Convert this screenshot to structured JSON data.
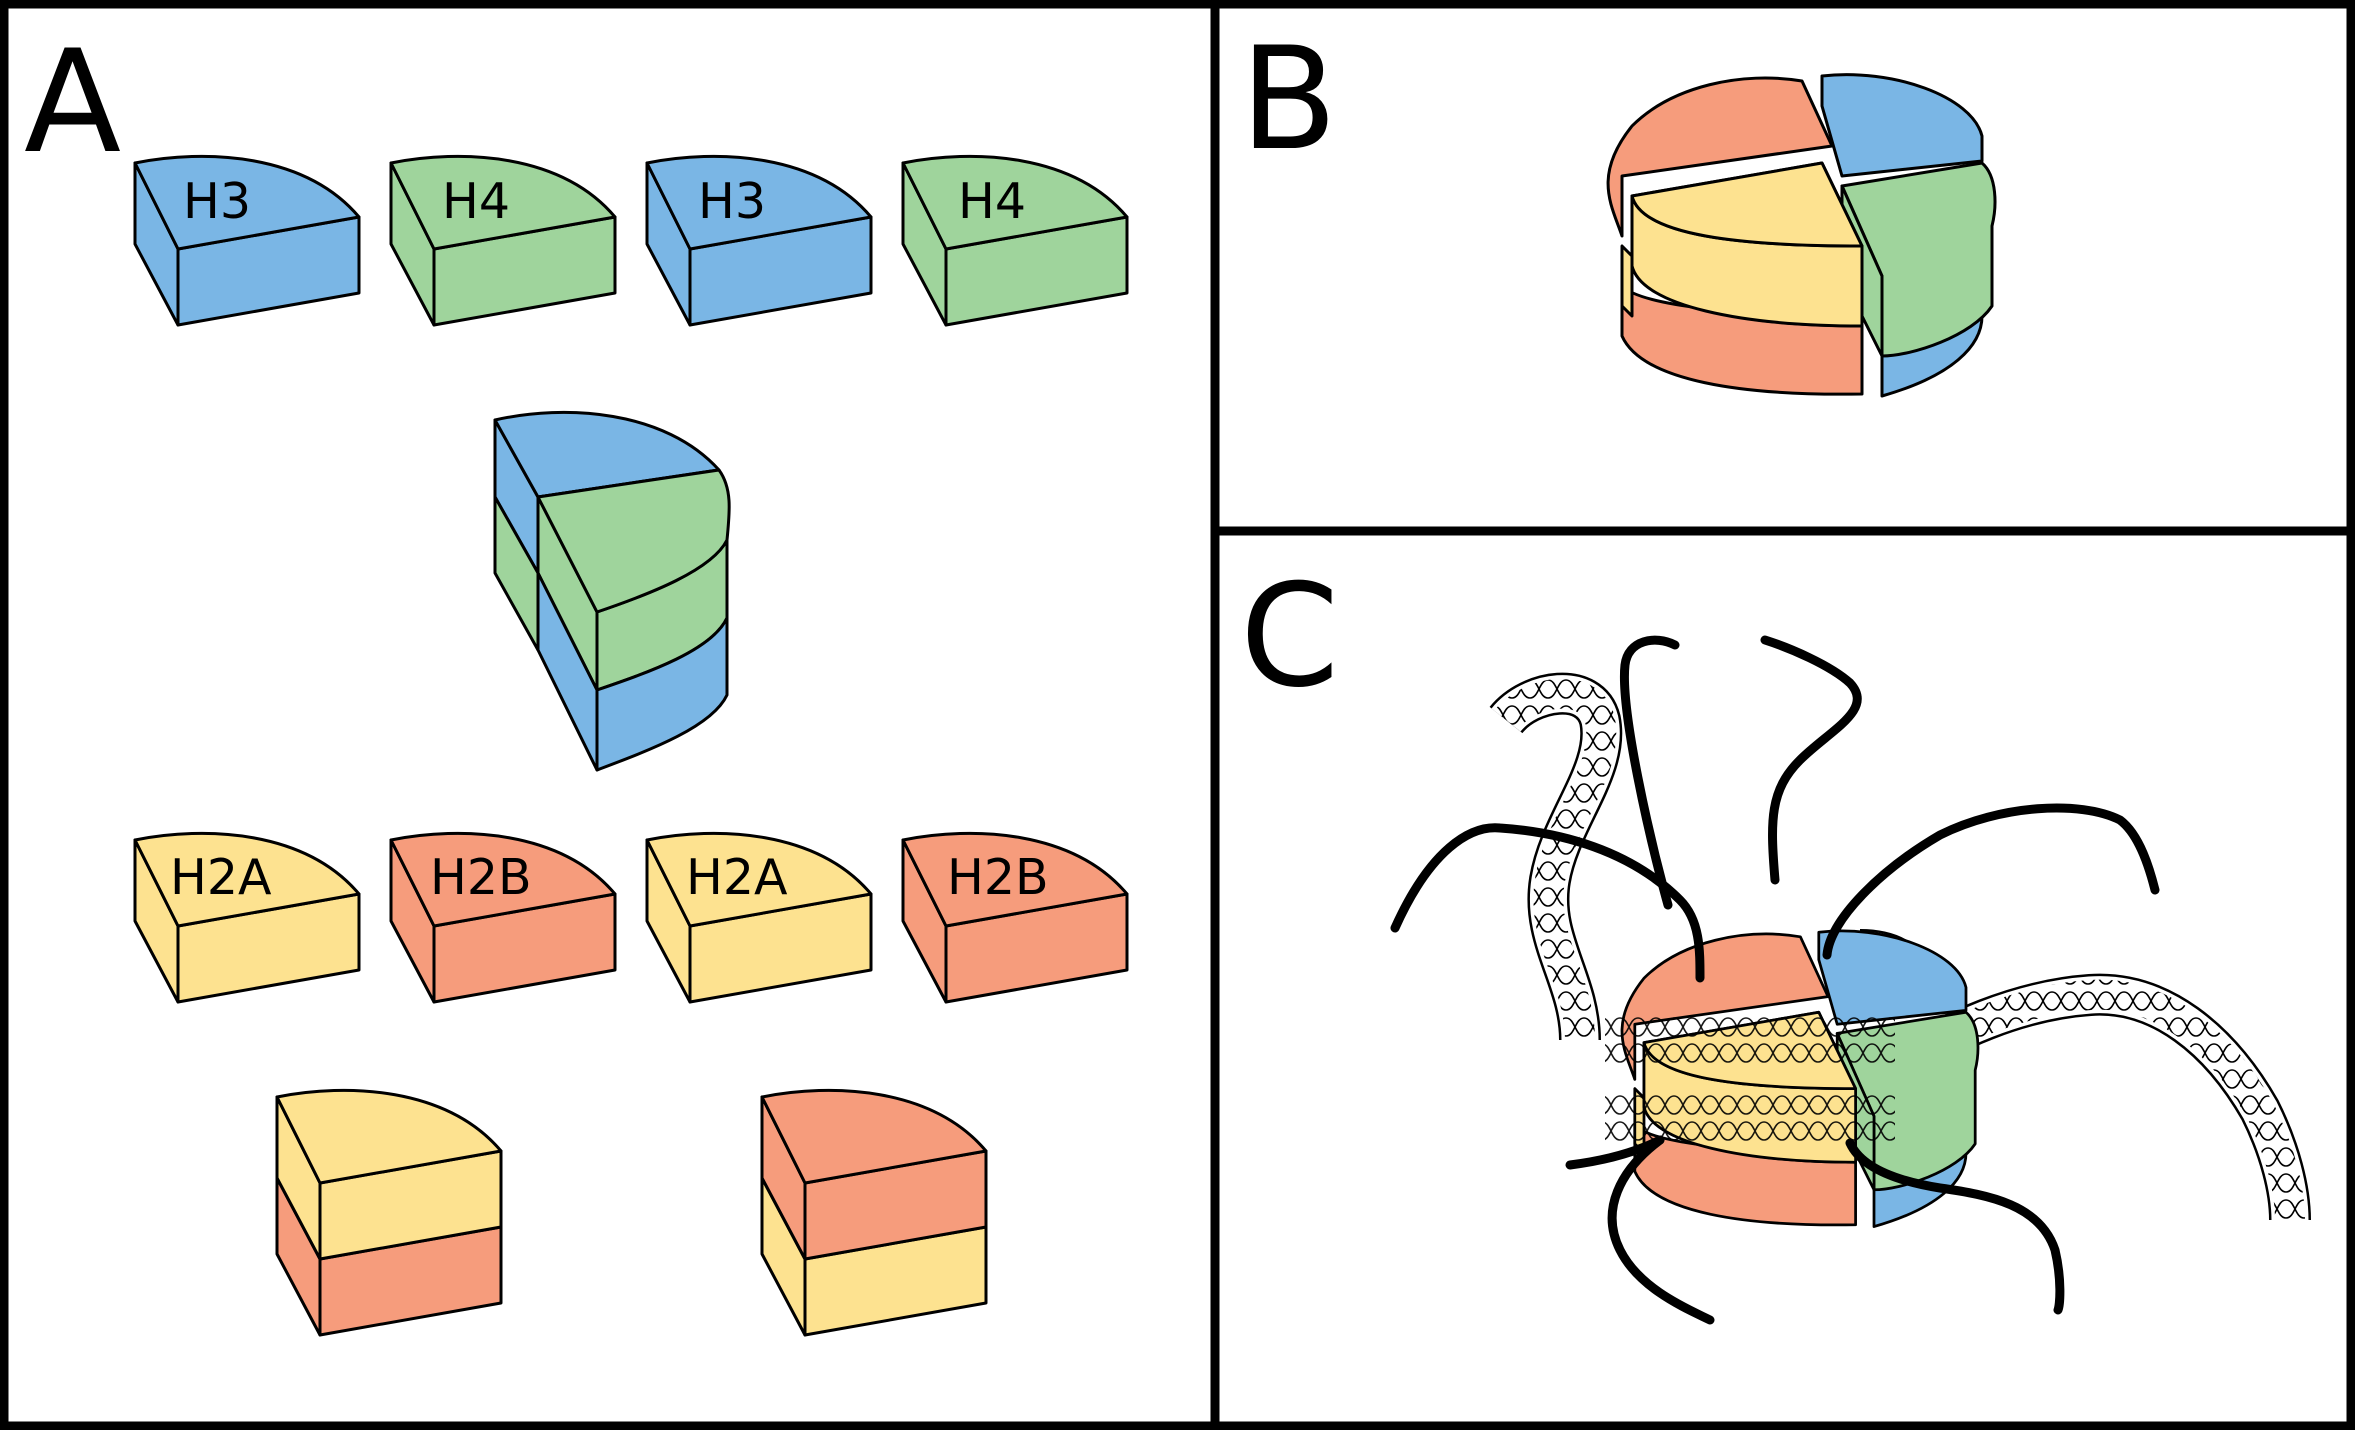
{
  "panels": [
    {
      "letter": "A"
    },
    {
      "letter": "B"
    },
    {
      "letter": "C"
    }
  ],
  "histones": {
    "H3": {
      "label": "H3",
      "color": "#7ab6e5"
    },
    "H4": {
      "label": "H4",
      "color": "#9fd49c"
    },
    "H2A": {
      "label": "H2A",
      "color": "#fde290"
    },
    "H2B": {
      "label": "H2B",
      "color": "#f69c7c"
    }
  },
  "panel_a": {
    "top_row": [
      "H3",
      "H4",
      "H3",
      "H4"
    ],
    "middle_row": [
      "H2A",
      "H2B",
      "H2A",
      "H2B"
    ],
    "h3_h4_tetramer": [
      "H3",
      "H4"
    ],
    "dimers": [
      [
        "H2A",
        "H2B"
      ],
      [
        "H2B",
        "H2A"
      ]
    ]
  },
  "colors": {
    "outline": "#000000",
    "background": "#ffffff"
  }
}
